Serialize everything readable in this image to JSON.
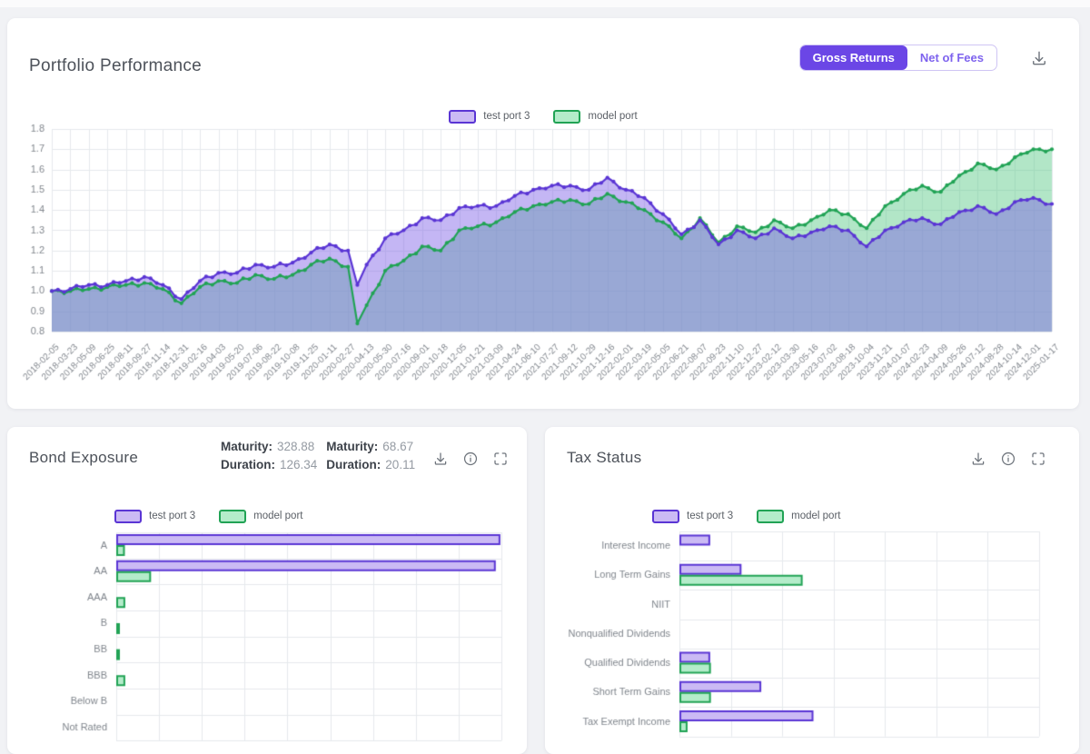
{
  "legend": {
    "series1": "test port 3",
    "series2": "model port"
  },
  "colors": {
    "accent": "#6b46e6",
    "series1_line": "#5a35d4",
    "series1_fill_light": "#cbbaf4",
    "series1_area": "rgba(124,93,230,0.45)",
    "series2_line": "#21a355",
    "series2_fill_light": "#b4ecca",
    "series2_area": "rgba(85,200,130,0.45)",
    "grid": "#e6e9ed",
    "axis_text": "#82878e",
    "icon": "#6e747c"
  },
  "panels": {
    "performance": {
      "title": "Portfolio Performance",
      "toggle": {
        "active": "Gross Returns",
        "inactive": "Net of Fees"
      }
    },
    "bond": {
      "title": "Bond Exposure",
      "stats": [
        {
          "label": "Maturity:",
          "value": "328.88"
        },
        {
          "label": "Maturity:",
          "value": "68.67"
        },
        {
          "label": "Duration:",
          "value": "126.34"
        },
        {
          "label": "Duration:",
          "value": "20.11"
        }
      ]
    },
    "tax": {
      "title": "Tax Status"
    }
  },
  "chart_data": [
    {
      "type": "line",
      "title": "Portfolio Performance",
      "xlabel": "",
      "ylabel": "",
      "ylim": [
        0.8,
        1.8
      ],
      "ytick_step": 0.1,
      "grid": true,
      "legend_position": "top-center",
      "marker": "circle",
      "x": [
        "2018-02-05",
        "2018-03-23",
        "2018-05-09",
        "2018-06-25",
        "2018-08-11",
        "2018-09-27",
        "2018-11-14",
        "2018-12-31",
        "2019-02-16",
        "2019-04-03",
        "2019-05-20",
        "2019-07-06",
        "2019-08-22",
        "2019-10-08",
        "2019-11-25",
        "2020-01-11",
        "2020-02-27",
        "2020-04-13",
        "2020-05-30",
        "2020-07-16",
        "2020-09-01",
        "2020-10-18",
        "2020-12-05",
        "2021-01-21",
        "2021-03-09",
        "2021-04-24",
        "2021-06-10",
        "2021-07-27",
        "2021-09-12",
        "2021-10-29",
        "2021-12-16",
        "2022-02-01",
        "2022-03-19",
        "2022-05-05",
        "2022-06-21",
        "2022-08-07",
        "2022-09-23",
        "2022-11-10",
        "2022-12-27",
        "2023-02-12",
        "2023-03-30",
        "2023-05-16",
        "2023-07-02",
        "2023-08-18",
        "2023-10-04",
        "2023-11-21",
        "2024-01-07",
        "2024-02-23",
        "2024-04-09",
        "2024-05-26",
        "2024-07-12",
        "2024-08-28",
        "2024-10-14",
        "2024-12-01",
        "2025-01-17"
      ],
      "series": [
        {
          "name": "test port 3",
          "values": [
            1.0,
            1.01,
            1.03,
            1.03,
            1.05,
            1.07,
            1.03,
            0.96,
            1.05,
            1.09,
            1.09,
            1.13,
            1.12,
            1.14,
            1.19,
            1.23,
            1.2,
            1.13,
            1.26,
            1.3,
            1.36,
            1.35,
            1.41,
            1.42,
            1.42,
            1.47,
            1.5,
            1.52,
            1.52,
            1.5,
            1.56,
            1.5,
            1.46,
            1.38,
            1.28,
            1.35,
            1.23,
            1.3,
            1.26,
            1.31,
            1.26,
            1.29,
            1.32,
            1.3,
            1.22,
            1.3,
            1.34,
            1.36,
            1.33,
            1.39,
            1.42,
            1.38,
            1.44,
            1.46,
            1.43
          ]
        },
        {
          "name": "model port",
          "values": [
            1.0,
            1.0,
            1.01,
            1.02,
            1.03,
            1.04,
            1.01,
            0.94,
            1.02,
            1.05,
            1.04,
            1.08,
            1.06,
            1.08,
            1.13,
            1.16,
            1.12,
            0.93,
            1.1,
            1.15,
            1.22,
            1.2,
            1.3,
            1.32,
            1.34,
            1.39,
            1.42,
            1.44,
            1.45,
            1.43,
            1.48,
            1.44,
            1.4,
            1.34,
            1.26,
            1.36,
            1.24,
            1.32,
            1.29,
            1.35,
            1.31,
            1.35,
            1.4,
            1.38,
            1.31,
            1.42,
            1.48,
            1.52,
            1.49,
            1.57,
            1.63,
            1.6,
            1.66,
            1.7,
            1.7
          ]
        }
      ],
      "events": {
        "drawdown": {
          "segment_after_date": "2020-02-27",
          "test_port_3_low": 1.03,
          "model_port_low": 0.84
        }
      }
    },
    {
      "type": "bar",
      "title": "Bond Exposure",
      "orientation": "horizontal",
      "categories": [
        "A",
        "AA",
        "AAA",
        "B",
        "BB",
        "BBB",
        "Below B",
        "Not Rated"
      ],
      "series": [
        {
          "name": "test port 3",
          "values": [
            99.5,
            98.3,
            0,
            0,
            0,
            0,
            0,
            0
          ]
        },
        {
          "name": "model port",
          "values": [
            2.0,
            8.8,
            2.1,
            0.4,
            0.6,
            2.1,
            0,
            0
          ]
        }
      ],
      "value_scale": "percent_of_plot_width",
      "x_axis_labels": "not visible (cut off below fold)",
      "grid_intervals": 9
    },
    {
      "type": "bar",
      "title": "Tax Status",
      "orientation": "horizontal",
      "categories": [
        "Interest Income",
        "Long Term Gains",
        "NIIT",
        "Nonqualified Dividends",
        "Qualified Dividends",
        "Short Term Gains",
        "Tax Exempt Income"
      ],
      "series": [
        {
          "name": "test port 3",
          "values": [
            8.3,
            17.0,
            0,
            0,
            8.3,
            22.5,
            37.0
          ]
        },
        {
          "name": "model port",
          "values": [
            0,
            34.0,
            0,
            0,
            8.5,
            8.5,
            2.0
          ]
        }
      ],
      "value_scale": "percent_of_plot_width",
      "x_axis_labels": "not visible (cut off below fold)",
      "grid_intervals": 7
    }
  ]
}
